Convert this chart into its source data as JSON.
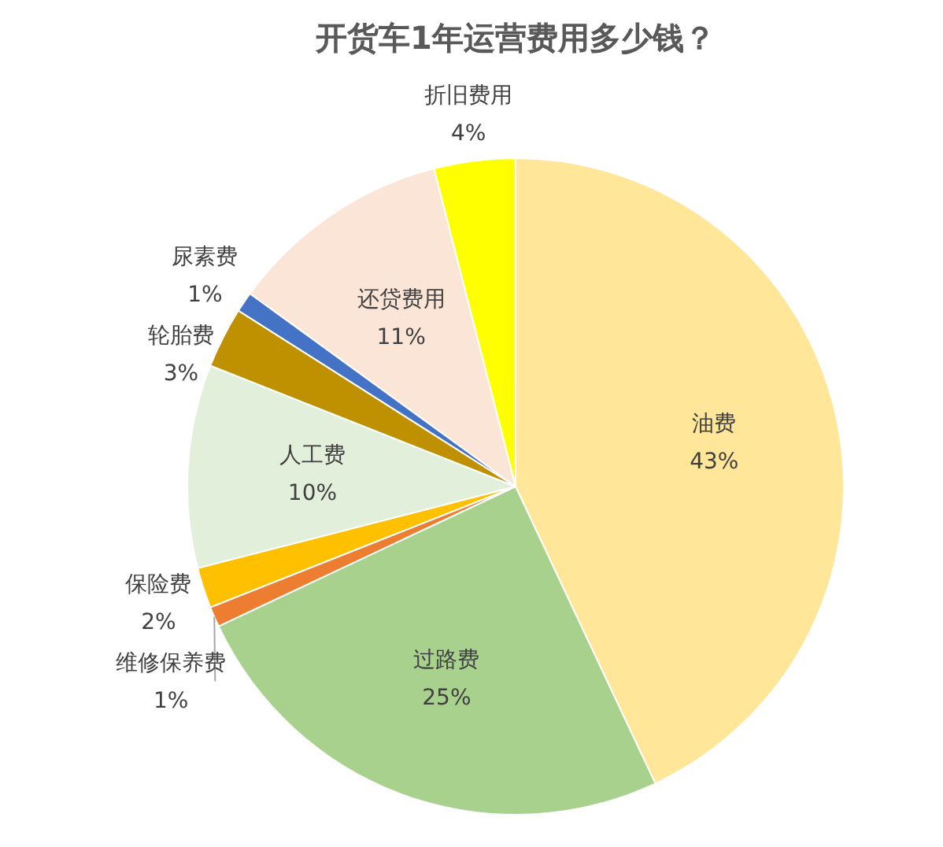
{
  "chart_data": {
    "type": "pie",
    "title": "开货车1年运营费用多少钱？",
    "categories": [
      "油费",
      "过路费",
      "维修保养费",
      "保险费",
      "人工费",
      "轮胎费",
      "尿素费",
      "还贷费用",
      "折旧费用"
    ],
    "values": [
      43,
      25,
      1,
      2,
      10,
      3,
      1,
      11,
      4
    ],
    "colors": [
      "#ffe699",
      "#a9d18e",
      "#ed7d31",
      "#ffc000",
      "#e2efda",
      "#bf9000",
      "#4472c4",
      "#fbe5d6",
      "#ffff00"
    ],
    "value_labels": [
      "43%",
      "25%",
      "1%",
      "2%",
      "10%",
      "3%",
      "1%",
      "11%",
      "4%"
    ],
    "legend": false
  }
}
